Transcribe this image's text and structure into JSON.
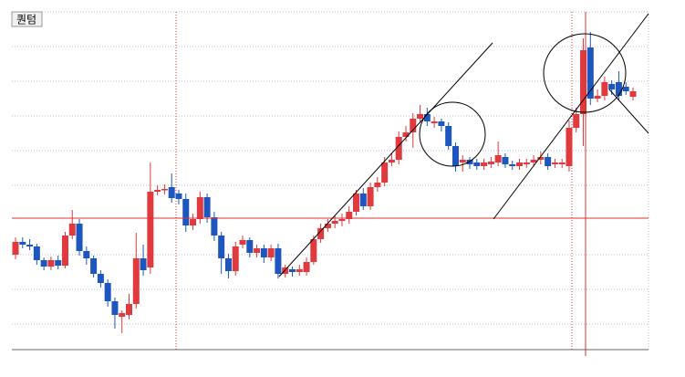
{
  "chart_data": {
    "type": "candlestick",
    "series": [
      {
        "name": "퀀텀",
        "open": [
          121,
          135,
          132,
          130,
          115,
          108,
          115,
          109,
          142,
          155,
          125,
          117,
          100,
          90,
          70,
          53,
          55,
          67,
          117,
          107,
          190,
          192,
          195,
          188,
          182,
          153,
          160,
          184,
          162,
          142,
          117,
          103,
          132,
          137,
          123,
          128,
          118,
          128,
          100,
          105,
          102,
          102,
          113,
          138,
          150,
          155,
          158,
          160,
          168,
          188,
          174,
          195,
          200,
          222,
          225,
          250,
          255,
          270,
          275,
          265,
          267,
          262,
          240,
          222,
          225,
          222,
          218,
          220,
          222,
          228,
          220,
          218,
          220,
          222,
          225,
          228,
          220,
          220,
          218,
          260,
          275,
          348,
          292,
          295,
          308,
          310,
          305,
          294
        ],
        "high": [
          140,
          140,
          138,
          133,
          118,
          119,
          120,
          146,
          170,
          160,
          130,
          120,
          104,
          94,
          74,
          60,
          78,
          145,
          132,
          222,
          197,
          198,
          210,
          192,
          188,
          166,
          190,
          188,
          168,
          146,
          122,
          135,
          142,
          140,
          132,
          132,
          132,
          133,
          110,
          108,
          110,
          118,
          142,
          155,
          160,
          164,
          166,
          174,
          192,
          194,
          200,
          206,
          228,
          232,
          256,
          262,
          276,
          285,
          282,
          272,
          270,
          266,
          244,
          230,
          228,
          226,
          226,
          228,
          245,
          232,
          224,
          226,
          226,
          230,
          234,
          232,
          226,
          226,
          268,
          282,
          358,
          365,
          302,
          316,
          312,
          322,
          310,
          304
        ],
        "low": [
          116,
          128,
          126,
          110,
          104,
          104,
          105,
          106,
          138,
          120,
          110,
          96,
          85,
          64,
          40,
          35,
          50,
          62,
          98,
          100,
          186,
          187,
          178,
          176,
          146,
          148,
          155,
          156,
          136,
          100,
          95,
          98,
          128,
          118,
          118,
          112,
          114,
          95,
          96,
          97,
          98,
          98,
          110,
          134,
          146,
          150,
          152,
          155,
          164,
          170,
          170,
          190,
          196,
          218,
          220,
          245,
          238,
          265,
          262,
          260,
          256,
          236,
          212,
          212,
          215,
          214,
          214,
          216,
          218,
          216,
          214,
          214,
          216,
          218,
          220,
          214,
          216,
          216,
          212,
          255,
          240,
          285,
          288,
          290,
          296,
          290,
          296,
          290
        ],
        "close": [
          135,
          132,
          130,
          115,
          108,
          115,
          109,
          142,
          155,
          125,
          117,
          100,
          90,
          70,
          55,
          57,
          67,
          117,
          104,
          190,
          192,
          193,
          183,
          182,
          153,
          160,
          184,
          162,
          142,
          117,
          103,
          130,
          137,
          123,
          128,
          118,
          128,
          100,
          107,
          102,
          105,
          113,
          138,
          150,
          155,
          158,
          160,
          168,
          188,
          174,
          195,
          200,
          222,
          225,
          250,
          255,
          270,
          275,
          267,
          267,
          262,
          240,
          218,
          225,
          220,
          218,
          222,
          223,
          230,
          220,
          218,
          222,
          222,
          225,
          228,
          218,
          222,
          222,
          260,
          275,
          345,
          292,
          295,
          310,
          302,
          295,
          300,
          300
        ]
      }
    ],
    "up_color": "#e0393e",
    "down_color": "#1e56c0",
    "ylim": [
      17,
      387
    ]
  }
}
